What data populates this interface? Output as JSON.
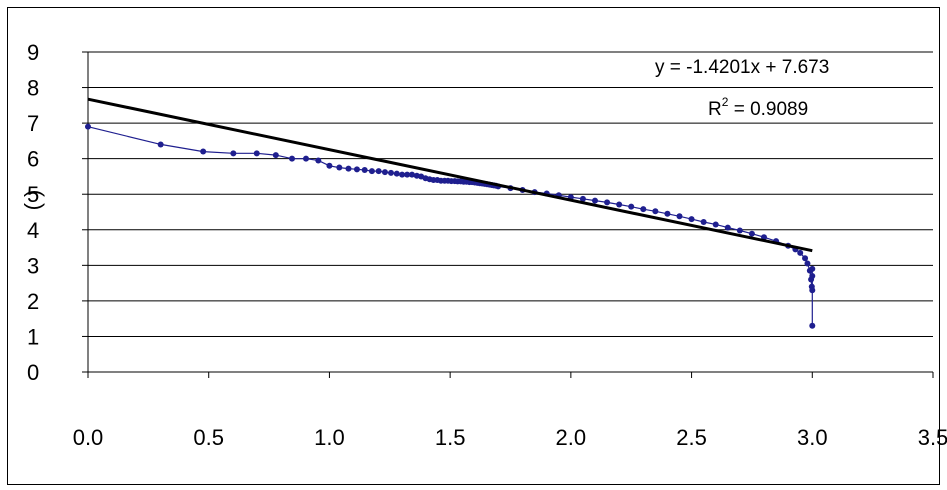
{
  "chart_data": {
    "type": "scatter",
    "title": "",
    "xlabel": "",
    "ylabel": "( )",
    "xlim": [
      0.0,
      3.5
    ],
    "ylim": [
      0,
      9
    ],
    "x_ticks": [
      "0.0",
      "0.5",
      "1.0",
      "1.5",
      "2.0",
      "2.5",
      "3.0",
      "3.5"
    ],
    "y_ticks": [
      "0",
      "1",
      "2",
      "3",
      "4",
      "5",
      "6",
      "7",
      "8",
      "9"
    ],
    "grid": "horizontal",
    "series": [
      {
        "color": "#1F1F8F",
        "marker": "circle",
        "line": true,
        "x": [
          0.0,
          0.301,
          0.477,
          0.602,
          0.699,
          0.778,
          0.845,
          0.903,
          0.954,
          1.0,
          1.041,
          1.079,
          1.114,
          1.146,
          1.176,
          1.204,
          1.23,
          1.255,
          1.279,
          1.301,
          1.322,
          1.342,
          1.362,
          1.38,
          1.398,
          1.415,
          1.431,
          1.447,
          1.462,
          1.477,
          1.491,
          1.505,
          1.519,
          1.531,
          1.544,
          1.556,
          1.568,
          1.58,
          1.591,
          1.602,
          1.613,
          1.623,
          1.633,
          1.643,
          1.653,
          1.663,
          1.672,
          1.681,
          1.69,
          1.699,
          1.75,
          1.8,
          1.85,
          1.9,
          1.95,
          2.0,
          2.05,
          2.1,
          2.15,
          2.2,
          2.25,
          2.3,
          2.35,
          2.4,
          2.45,
          2.5,
          2.55,
          2.6,
          2.65,
          2.7,
          2.75,
          2.8,
          2.85,
          2.9,
          2.93,
          2.95,
          2.97,
          2.98,
          2.99,
          2.995,
          2.998,
          3.0,
          3.0,
          3.0,
          3.0
        ],
        "y": [
          6.9,
          6.4,
          6.2,
          6.15,
          6.15,
          6.1,
          6.0,
          6.0,
          5.95,
          5.8,
          5.75,
          5.72,
          5.7,
          5.68,
          5.65,
          5.65,
          5.62,
          5.6,
          5.58,
          5.55,
          5.55,
          5.55,
          5.52,
          5.5,
          5.45,
          5.42,
          5.4,
          5.4,
          5.38,
          5.38,
          5.38,
          5.37,
          5.37,
          5.36,
          5.36,
          5.35,
          5.35,
          5.34,
          5.34,
          5.33,
          5.32,
          5.31,
          5.3,
          5.29,
          5.28,
          5.27,
          5.26,
          5.25,
          5.24,
          5.22,
          5.17,
          5.12,
          5.06,
          5.02,
          4.97,
          4.92,
          4.87,
          4.82,
          4.77,
          4.71,
          4.65,
          4.58,
          4.52,
          4.45,
          4.38,
          4.3,
          4.22,
          4.15,
          4.06,
          3.98,
          3.89,
          3.79,
          3.68,
          3.55,
          3.45,
          3.35,
          3.2,
          3.05,
          2.85,
          2.6,
          2.4,
          2.3,
          2.7,
          2.9,
          1.3
        ]
      }
    ],
    "trendline": {
      "type": "linear",
      "slope": -1.4201,
      "intercept": 7.673,
      "x_range": [
        0.0,
        3.0
      ],
      "color": "#000000"
    },
    "annotations": {
      "equation": "y = -1.4201x + 7.673",
      "r2_prefix": "R",
      "r2_sup": "2",
      "r2_suffix": " = 0.9089"
    }
  }
}
